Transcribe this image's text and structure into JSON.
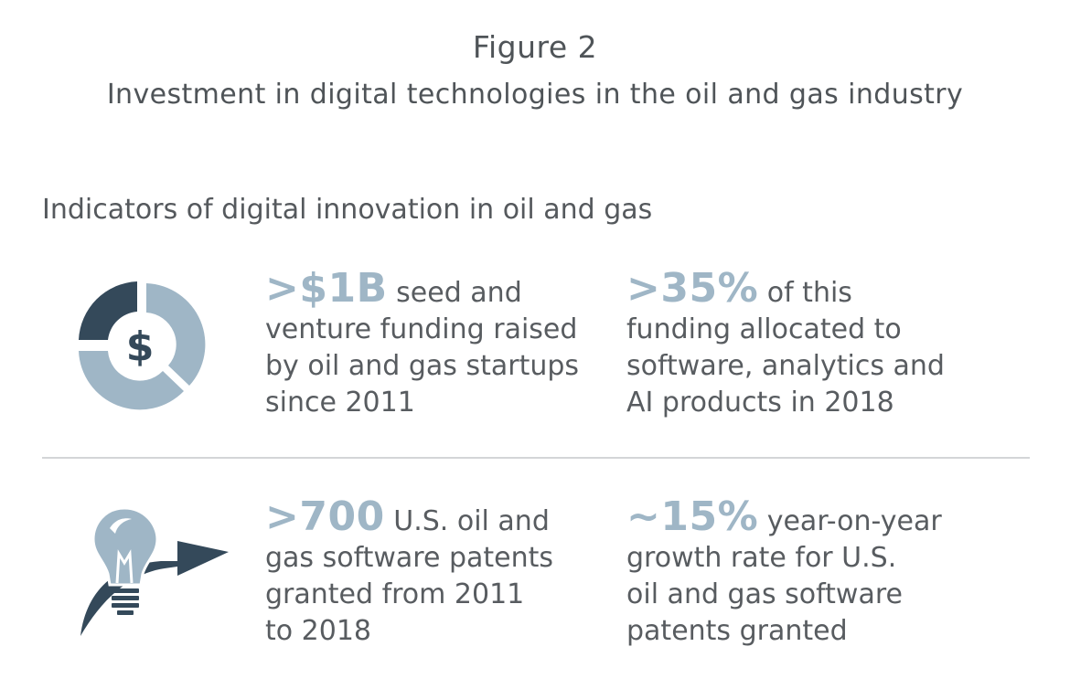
{
  "header": {
    "figure_label": "Figure 2",
    "title": "Investment in digital technologies in the oil and gas industry"
  },
  "section": {
    "heading": "Indicators of digital innovation in oil and gas"
  },
  "icons": {
    "funding_icon": "dollar-donut-icon",
    "patent_icon": "lightbulb-arrow-icon",
    "dollar_glyph": "$"
  },
  "colors": {
    "accent_light": "#9fb6c6",
    "accent_dark": "#34495a",
    "text": "#585c60"
  },
  "stats": [
    {
      "value": ">$1B",
      "line1_rest": " seed and",
      "lines": [
        "venture funding raised",
        "by oil and gas startups",
        "since 2011"
      ]
    },
    {
      "value": ">35%",
      "line1_rest": " of this",
      "lines": [
        "funding allocated to",
        "software, analytics and",
        "AI products in 2018"
      ]
    },
    {
      "value": ">700",
      "line1_rest": " U.S. oil and",
      "lines": [
        "gas software patents",
        "granted from 2011",
        "to 2018"
      ]
    },
    {
      "value": "~15%",
      "line1_rest": " year-on-year",
      "lines": [
        "growth rate for U.S.",
        "oil and gas software",
        "patents granted"
      ]
    }
  ]
}
